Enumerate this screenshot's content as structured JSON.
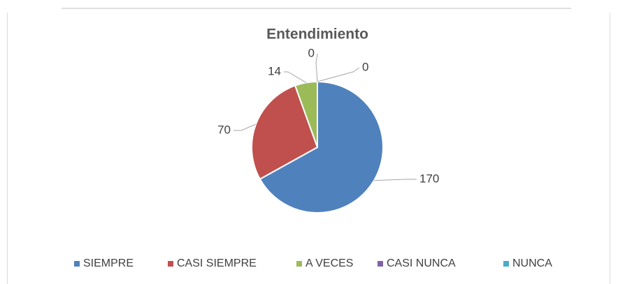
{
  "chart_data": {
    "type": "pie",
    "title": "Entendimiento",
    "categories": [
      "SIEMPRE",
      "CASI SIEMPRE",
      "A VECES",
      "CASI NUNCA",
      "NUNCA"
    ],
    "values": [
      170,
      70,
      14,
      0,
      0
    ],
    "colors": [
      "#4f81bd",
      "#c0504d",
      "#9bbb59",
      "#8064a2",
      "#4bacc6"
    ],
    "legend": "bottom"
  }
}
